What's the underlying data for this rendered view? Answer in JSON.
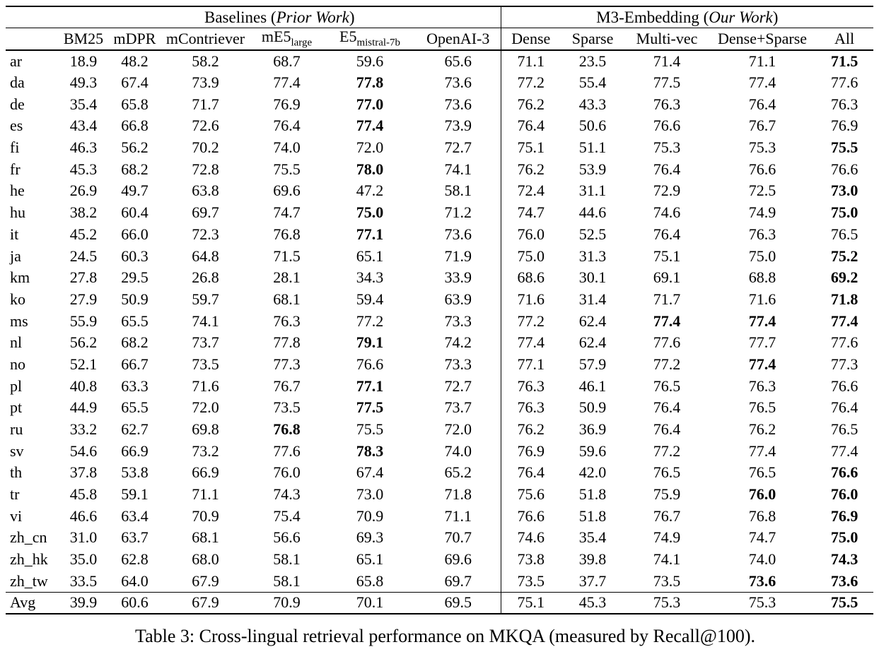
{
  "table": {
    "groups": [
      {
        "prefix": "Baselines (",
        "italic": "Prior Work",
        "suffix": ")"
      },
      {
        "prefix": "M3-Embedding (",
        "italic": "Our Work",
        "suffix": ")"
      }
    ],
    "columns": [
      {
        "label": "BM25"
      },
      {
        "label": "mDPR"
      },
      {
        "label": "mContriever"
      },
      {
        "label": "mE5",
        "sub": "large"
      },
      {
        "label": "E5",
        "sub": "mistral-7b"
      },
      {
        "label": "OpenAI-3"
      },
      {
        "label": "Dense"
      },
      {
        "label": "Sparse"
      },
      {
        "label": "Multi-vec"
      },
      {
        "label": "Dense+Sparse"
      },
      {
        "label": "All"
      }
    ],
    "rows": [
      {
        "label": "ar",
        "values": [
          "18.9",
          "48.2",
          "58.2",
          "68.7",
          "59.6",
          "65.6",
          "71.1",
          "23.5",
          "71.4",
          "71.1",
          "71.5"
        ],
        "bold": [
          10
        ]
      },
      {
        "label": "da",
        "values": [
          "49.3",
          "67.4",
          "73.9",
          "77.4",
          "77.8",
          "73.6",
          "77.2",
          "55.4",
          "77.5",
          "77.4",
          "77.6"
        ],
        "bold": [
          4
        ]
      },
      {
        "label": "de",
        "values": [
          "35.4",
          "65.8",
          "71.7",
          "76.9",
          "77.0",
          "73.6",
          "76.2",
          "43.3",
          "76.3",
          "76.4",
          "76.3"
        ],
        "bold": [
          4
        ]
      },
      {
        "label": "es",
        "values": [
          "43.4",
          "66.8",
          "72.6",
          "76.4",
          "77.4",
          "73.9",
          "76.4",
          "50.6",
          "76.6",
          "76.7",
          "76.9"
        ],
        "bold": [
          4
        ]
      },
      {
        "label": "fi",
        "values": [
          "46.3",
          "56.2",
          "70.2",
          "74.0",
          "72.0",
          "72.7",
          "75.1",
          "51.1",
          "75.3",
          "75.3",
          "75.5"
        ],
        "bold": [
          10
        ]
      },
      {
        "label": "fr",
        "values": [
          "45.3",
          "68.2",
          "72.8",
          "75.5",
          "78.0",
          "74.1",
          "76.2",
          "53.9",
          "76.4",
          "76.6",
          "76.6"
        ],
        "bold": [
          4
        ]
      },
      {
        "label": "he",
        "values": [
          "26.9",
          "49.7",
          "63.8",
          "69.6",
          "47.2",
          "58.1",
          "72.4",
          "31.1",
          "72.9",
          "72.5",
          "73.0"
        ],
        "bold": [
          10
        ]
      },
      {
        "label": "hu",
        "values": [
          "38.2",
          "60.4",
          "69.7",
          "74.7",
          "75.0",
          "71.2",
          "74.7",
          "44.6",
          "74.6",
          "74.9",
          "75.0"
        ],
        "bold": [
          4,
          10
        ]
      },
      {
        "label": "it",
        "values": [
          "45.2",
          "66.0",
          "72.3",
          "76.8",
          "77.1",
          "73.6",
          "76.0",
          "52.5",
          "76.4",
          "76.3",
          "76.5"
        ],
        "bold": [
          4
        ]
      },
      {
        "label": "ja",
        "values": [
          "24.5",
          "60.3",
          "64.8",
          "71.5",
          "65.1",
          "71.9",
          "75.0",
          "31.3",
          "75.1",
          "75.0",
          "75.2"
        ],
        "bold": [
          10
        ]
      },
      {
        "label": "km",
        "values": [
          "27.8",
          "29.5",
          "26.8",
          "28.1",
          "34.3",
          "33.9",
          "68.6",
          "30.1",
          "69.1",
          "68.8",
          "69.2"
        ],
        "bold": [
          10
        ]
      },
      {
        "label": "ko",
        "values": [
          "27.9",
          "50.9",
          "59.7",
          "68.1",
          "59.4",
          "63.9",
          "71.6",
          "31.4",
          "71.7",
          "71.6",
          "71.8"
        ],
        "bold": [
          10
        ]
      },
      {
        "label": "ms",
        "values": [
          "55.9",
          "65.5",
          "74.1",
          "76.3",
          "77.2",
          "73.3",
          "77.2",
          "62.4",
          "77.4",
          "77.4",
          "77.4"
        ],
        "bold": [
          8,
          9,
          10
        ]
      },
      {
        "label": "nl",
        "values": [
          "56.2",
          "68.2",
          "73.7",
          "77.8",
          "79.1",
          "74.2",
          "77.4",
          "62.4",
          "77.6",
          "77.7",
          "77.6"
        ],
        "bold": [
          4
        ]
      },
      {
        "label": "no",
        "values": [
          "52.1",
          "66.7",
          "73.5",
          "77.3",
          "76.6",
          "73.3",
          "77.1",
          "57.9",
          "77.2",
          "77.4",
          "77.3"
        ],
        "bold": [
          9
        ]
      },
      {
        "label": "pl",
        "values": [
          "40.8",
          "63.3",
          "71.6",
          "76.7",
          "77.1",
          "72.7",
          "76.3",
          "46.1",
          "76.5",
          "76.3",
          "76.6"
        ],
        "bold": [
          4
        ]
      },
      {
        "label": "pt",
        "values": [
          "44.9",
          "65.5",
          "72.0",
          "73.5",
          "77.5",
          "73.7",
          "76.3",
          "50.9",
          "76.4",
          "76.5",
          "76.4"
        ],
        "bold": [
          4
        ]
      },
      {
        "label": "ru",
        "values": [
          "33.2",
          "62.7",
          "69.8",
          "76.8",
          "75.5",
          "72.0",
          "76.2",
          "36.9",
          "76.4",
          "76.2",
          "76.5"
        ],
        "bold": [
          3
        ]
      },
      {
        "label": "sv",
        "values": [
          "54.6",
          "66.9",
          "73.2",
          "77.6",
          "78.3",
          "74.0",
          "76.9",
          "59.6",
          "77.2",
          "77.4",
          "77.4"
        ],
        "bold": [
          4
        ]
      },
      {
        "label": "th",
        "values": [
          "37.8",
          "53.8",
          "66.9",
          "76.0",
          "67.4",
          "65.2",
          "76.4",
          "42.0",
          "76.5",
          "76.5",
          "76.6"
        ],
        "bold": [
          10
        ]
      },
      {
        "label": "tr",
        "values": [
          "45.8",
          "59.1",
          "71.1",
          "74.3",
          "73.0",
          "71.8",
          "75.6",
          "51.8",
          "75.9",
          "76.0",
          "76.0"
        ],
        "bold": [
          9,
          10
        ]
      },
      {
        "label": "vi",
        "values": [
          "46.6",
          "63.4",
          "70.9",
          "75.4",
          "70.9",
          "71.1",
          "76.6",
          "51.8",
          "76.7",
          "76.8",
          "76.9"
        ],
        "bold": [
          10
        ]
      },
      {
        "label": "zh_cn",
        "values": [
          "31.0",
          "63.7",
          "68.1",
          "56.6",
          "69.3",
          "70.7",
          "74.6",
          "35.4",
          "74.9",
          "74.7",
          "75.0"
        ],
        "bold": [
          10
        ]
      },
      {
        "label": "zh_hk",
        "values": [
          "35.0",
          "62.8",
          "68.0",
          "58.1",
          "65.1",
          "69.6",
          "73.8",
          "39.8",
          "74.1",
          "74.0",
          "74.3"
        ],
        "bold": [
          10
        ]
      },
      {
        "label": "zh_tw",
        "values": [
          "33.5",
          "64.0",
          "67.9",
          "58.1",
          "65.8",
          "69.7",
          "73.5",
          "37.7",
          "73.5",
          "73.6",
          "73.6"
        ],
        "bold": [
          9,
          10
        ]
      }
    ],
    "avg_row": {
      "label": "Avg",
      "values": [
        "39.9",
        "60.6",
        "67.9",
        "70.9",
        "70.1",
        "69.5",
        "75.1",
        "45.3",
        "75.3",
        "75.3",
        "75.5"
      ],
      "bold": [
        10
      ]
    }
  },
  "caption": "Table 3: Cross-lingual retrieval performance on MKQA (measured by Recall@100)."
}
